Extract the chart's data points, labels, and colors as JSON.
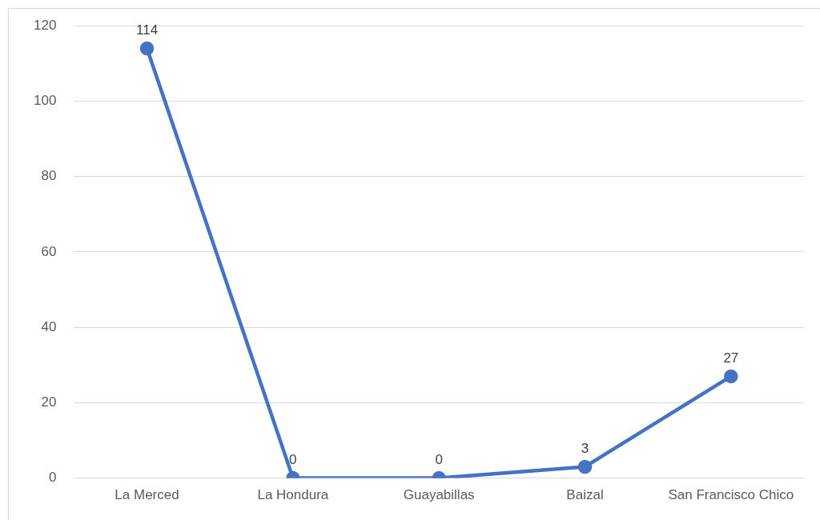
{
  "chart_data": {
    "type": "line",
    "categories": [
      "La Merced",
      "La Hondura",
      "Guayabillas",
      "Baizal",
      "San Francisco Chico"
    ],
    "series": [
      {
        "color": "#4472c4",
        "values": [
          114,
          0,
          0,
          3,
          27
        ]
      }
    ],
    "ylim": [
      0,
      120
    ],
    "yticks": [
      0,
      20,
      40,
      60,
      80,
      100,
      120
    ],
    "grid": "y",
    "legend": false,
    "marker": "circle",
    "line_style": "solid",
    "data_labels": true
  }
}
